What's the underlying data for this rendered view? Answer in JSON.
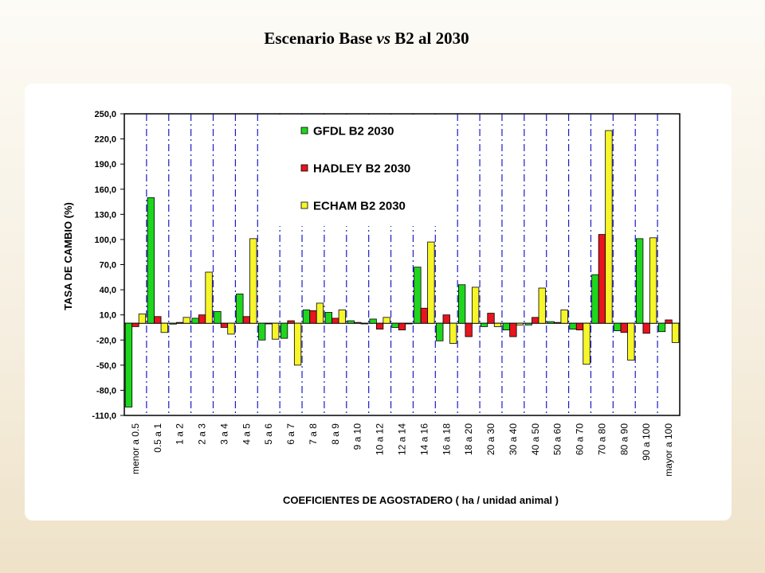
{
  "page_title": {
    "part1": "Escenario Base ",
    "part2": "vs",
    "part3": " B2 al 2030"
  },
  "colors": {
    "series": [
      "#1ed61e",
      "#e8141e",
      "#f6f62a"
    ],
    "grid": "#1a1acc"
  },
  "chart_data": {
    "type": "bar",
    "title": "Escenario Base vs B2 al 2030",
    "xlabel": "COEFICIENTES DE AGOSTADERO ( ha / unidad animal )",
    "ylabel": "TASA DE CAMBIO (%)",
    "ylim": [
      -110,
      250
    ],
    "yticks": [
      "250,0",
      "220,0",
      "190,0",
      "160,0",
      "130,0",
      "100,0",
      "70,0",
      "40,0",
      "10,0",
      "-20,0",
      "-50,0",
      "-80,0",
      "-110,0"
    ],
    "ytick_values": [
      250,
      220,
      190,
      160,
      130,
      100,
      70,
      40,
      10,
      -20,
      -50,
      -80,
      -110
    ],
    "grid": "vertical dash-dot between categories",
    "legend_position": "top-center",
    "categories": [
      "menor a 0.5",
      "0.5 a 1",
      "1 a 2",
      "2 a 3",
      "3 a 4",
      "4 a 5",
      "5 a 6",
      "6 a 7",
      "7 a 8",
      "8 a 9",
      "9 a 10",
      "10 a 12",
      "12 a 14",
      "14 a 16",
      "16 a 18",
      "18 a 20",
      "20 a 30",
      "30 a 40",
      "40 a 50",
      "50 a 60",
      "60 a 70",
      "70 a 80",
      "80 a 90",
      "90 a 100",
      "mayor a 100"
    ],
    "series": [
      {
        "name": "GFDL B2 2030",
        "values": [
          -100,
          150,
          -1,
          6,
          14,
          35,
          -20,
          -18,
          16,
          13,
          3,
          5,
          -5,
          67,
          -21,
          46,
          -4,
          -8,
          -2,
          2,
          -7,
          58,
          -9,
          101,
          -10
        ]
      },
      {
        "name": "HADLEY B2 2030",
        "values": [
          -4,
          8,
          1,
          10,
          -5,
          8,
          0,
          3,
          15,
          6,
          1,
          -7,
          -8,
          18,
          10,
          -16,
          12,
          -16,
          7,
          1,
          -8,
          106,
          -11,
          -12,
          4
        ]
      },
      {
        "name": "ECHAM B2 2030",
        "values": [
          11,
          -11,
          7,
          61,
          -13,
          101,
          -19,
          -50,
          24,
          16,
          0,
          7,
          0,
          97,
          -24,
          43,
          -4,
          -2,
          42,
          16,
          -49,
          230,
          -44,
          102,
          -23
        ]
      }
    ]
  }
}
